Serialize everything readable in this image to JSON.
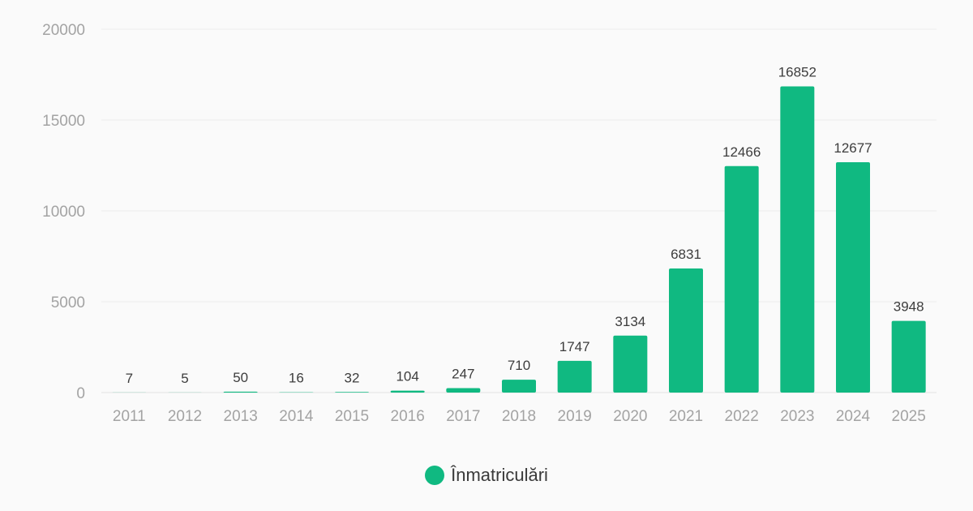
{
  "chart_data": {
    "type": "bar",
    "categories": [
      "2011",
      "2012",
      "2013",
      "2014",
      "2015",
      "2016",
      "2017",
      "2018",
      "2019",
      "2020",
      "2021",
      "2022",
      "2023",
      "2024",
      "2025"
    ],
    "series": [
      {
        "name": "Înmatriculări",
        "values": [
          7,
          5,
          50,
          16,
          32,
          104,
          247,
          710,
          1747,
          3134,
          6831,
          12466,
          16852,
          12677,
          3948
        ],
        "color": "#10b981"
      }
    ],
    "ylim": [
      0,
      20000
    ],
    "yticks": [
      0,
      5000,
      10000,
      15000,
      20000
    ],
    "grid": true,
    "legend_position": "bottom-center",
    "data_labels": true,
    "xlabel": "",
    "ylabel": ""
  },
  "legend": {
    "label": "Înmatriculări",
    "color": "#10b981"
  }
}
